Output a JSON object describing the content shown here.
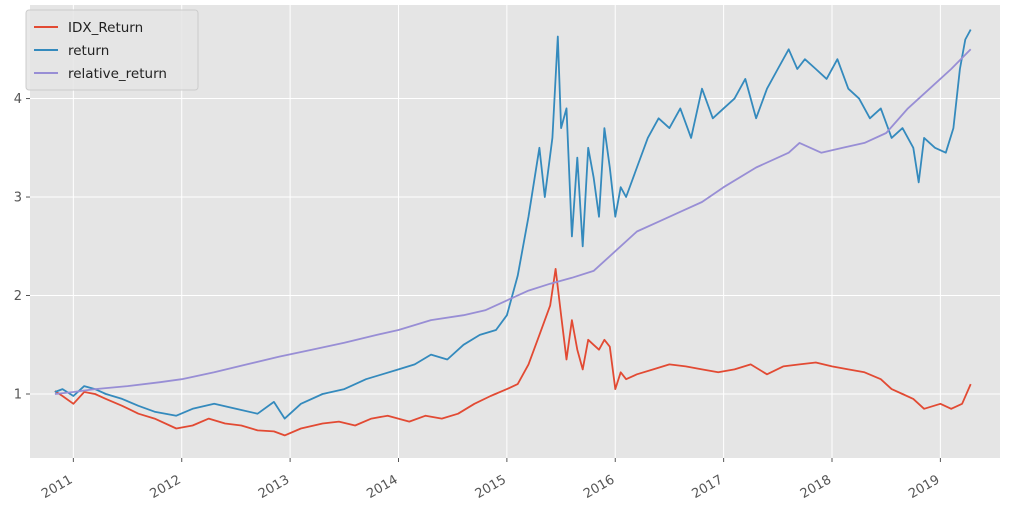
{
  "chart_data": {
    "type": "line",
    "title": "",
    "xlabel": "",
    "ylabel": "",
    "xlim": [
      2010.6,
      2019.55
    ],
    "ylim": [
      0.35,
      4.95
    ],
    "grid": true,
    "legend_placement": "top-left",
    "x_ticks": [
      2011,
      2012,
      2013,
      2014,
      2015,
      2016,
      2017,
      2018,
      2019
    ],
    "x_tick_labels": [
      "2011",
      "2012",
      "2013",
      "2014",
      "2015",
      "2016",
      "2017",
      "2018",
      "2019"
    ],
    "y_ticks": [
      1,
      2,
      3,
      4
    ],
    "y_tick_labels": [
      "1",
      "2",
      "3",
      "4"
    ],
    "series": [
      {
        "name": "IDX_Return",
        "color": "#e24a33",
        "x": [
          2010.83,
          2010.9,
          2011.0,
          2011.1,
          2011.2,
          2011.3,
          2011.45,
          2011.6,
          2011.75,
          2011.95,
          2012.1,
          2012.25,
          2012.4,
          2012.55,
          2012.7,
          2012.85,
          2012.95,
          2013.1,
          2013.3,
          2013.45,
          2013.6,
          2013.75,
          2013.9,
          2014.1,
          2014.25,
          2014.4,
          2014.55,
          2014.7,
          2014.85,
          2015.0,
          2015.1,
          2015.2,
          2015.3,
          2015.4,
          2015.45,
          2015.5,
          2015.55,
          2015.6,
          2015.65,
          2015.7,
          2015.75,
          2015.8,
          2015.85,
          2015.9,
          2015.95,
          2016.0,
          2016.05,
          2016.1,
          2016.2,
          2016.35,
          2016.5,
          2016.65,
          2016.8,
          2016.95,
          2017.1,
          2017.25,
          2017.4,
          2017.55,
          2017.7,
          2017.85,
          2018.0,
          2018.15,
          2018.3,
          2018.45,
          2018.55,
          2018.65,
          2018.75,
          2018.85,
          2019.0,
          2019.1,
          2019.2,
          2019.28
        ],
        "values": [
          1.03,
          0.98,
          0.9,
          1.02,
          1.0,
          0.95,
          0.88,
          0.8,
          0.75,
          0.65,
          0.68,
          0.75,
          0.7,
          0.68,
          0.63,
          0.62,
          0.58,
          0.65,
          0.7,
          0.72,
          0.68,
          0.75,
          0.78,
          0.72,
          0.78,
          0.75,
          0.8,
          0.9,
          0.98,
          1.05,
          1.1,
          1.3,
          1.6,
          1.9,
          2.27,
          1.8,
          1.35,
          1.75,
          1.45,
          1.25,
          1.55,
          1.5,
          1.45,
          1.55,
          1.48,
          1.05,
          1.22,
          1.15,
          1.2,
          1.25,
          1.3,
          1.28,
          1.25,
          1.22,
          1.25,
          1.3,
          1.2,
          1.28,
          1.3,
          1.32,
          1.28,
          1.25,
          1.22,
          1.15,
          1.05,
          1.0,
          0.95,
          0.85,
          0.9,
          0.85,
          0.9,
          1.1
        ]
      },
      {
        "name": "return",
        "color": "#348abd",
        "x": [
          2010.83,
          2010.9,
          2011.0,
          2011.1,
          2011.2,
          2011.3,
          2011.45,
          2011.6,
          2011.75,
          2011.95,
          2012.1,
          2012.3,
          2012.5,
          2012.7,
          2012.85,
          2012.95,
          2013.1,
          2013.3,
          2013.5,
          2013.7,
          2013.85,
          2014.0,
          2014.15,
          2014.3,
          2014.45,
          2014.6,
          2014.75,
          2014.9,
          2015.0,
          2015.1,
          2015.2,
          2015.3,
          2015.35,
          2015.42,
          2015.47,
          2015.5,
          2015.55,
          2015.6,
          2015.65,
          2015.7,
          2015.75,
          2015.8,
          2015.85,
          2015.9,
          2015.95,
          2016.0,
          2016.05,
          2016.1,
          2016.2,
          2016.3,
          2016.4,
          2016.5,
          2016.6,
          2016.7,
          2016.8,
          2016.9,
          2017.0,
          2017.1,
          2017.2,
          2017.3,
          2017.4,
          2017.5,
          2017.6,
          2017.68,
          2017.75,
          2017.85,
          2017.95,
          2018.05,
          2018.15,
          2018.25,
          2018.35,
          2018.45,
          2018.55,
          2018.65,
          2018.75,
          2018.8,
          2018.85,
          2018.95,
          2019.05,
          2019.12,
          2019.18,
          2019.23,
          2019.28
        ],
        "values": [
          1.02,
          1.05,
          0.98,
          1.08,
          1.05,
          1.0,
          0.95,
          0.88,
          0.82,
          0.78,
          0.85,
          0.9,
          0.85,
          0.8,
          0.92,
          0.75,
          0.9,
          1.0,
          1.05,
          1.15,
          1.2,
          1.25,
          1.3,
          1.4,
          1.35,
          1.5,
          1.6,
          1.65,
          1.8,
          2.2,
          2.8,
          3.5,
          3.0,
          3.6,
          4.63,
          3.7,
          3.9,
          2.6,
          3.4,
          2.5,
          3.5,
          3.2,
          2.8,
          3.7,
          3.3,
          2.8,
          3.1,
          3.0,
          3.3,
          3.6,
          3.8,
          3.7,
          3.9,
          3.6,
          4.1,
          3.8,
          3.9,
          4.0,
          4.2,
          3.8,
          4.1,
          4.3,
          4.5,
          4.3,
          4.4,
          4.3,
          4.2,
          4.4,
          4.1,
          4.0,
          3.8,
          3.9,
          3.6,
          3.7,
          3.5,
          3.15,
          3.6,
          3.5,
          3.45,
          3.7,
          4.3,
          4.6,
          4.7
        ]
      },
      {
        "name": "relative_return",
        "color": "#988ed5",
        "x": [
          2010.83,
          2011.0,
          2011.2,
          2011.5,
          2011.8,
          2012.0,
          2012.3,
          2012.6,
          2012.9,
          2013.2,
          2013.5,
          2013.8,
          2014.0,
          2014.3,
          2014.6,
          2014.8,
          2015.0,
          2015.2,
          2015.4,
          2015.6,
          2015.8,
          2016.0,
          2016.2,
          2016.4,
          2016.6,
          2016.8,
          2017.0,
          2017.3,
          2017.6,
          2017.7,
          2017.9,
          2018.1,
          2018.3,
          2018.5,
          2018.7,
          2018.9,
          2019.1,
          2019.28
        ],
        "values": [
          1.0,
          1.02,
          1.05,
          1.08,
          1.12,
          1.15,
          1.22,
          1.3,
          1.38,
          1.45,
          1.52,
          1.6,
          1.65,
          1.75,
          1.8,
          1.85,
          1.95,
          2.05,
          2.12,
          2.18,
          2.25,
          2.45,
          2.65,
          2.75,
          2.85,
          2.95,
          3.1,
          3.3,
          3.45,
          3.55,
          3.45,
          3.5,
          3.55,
          3.65,
          3.9,
          4.1,
          4.3,
          4.5
        ]
      }
    ]
  }
}
